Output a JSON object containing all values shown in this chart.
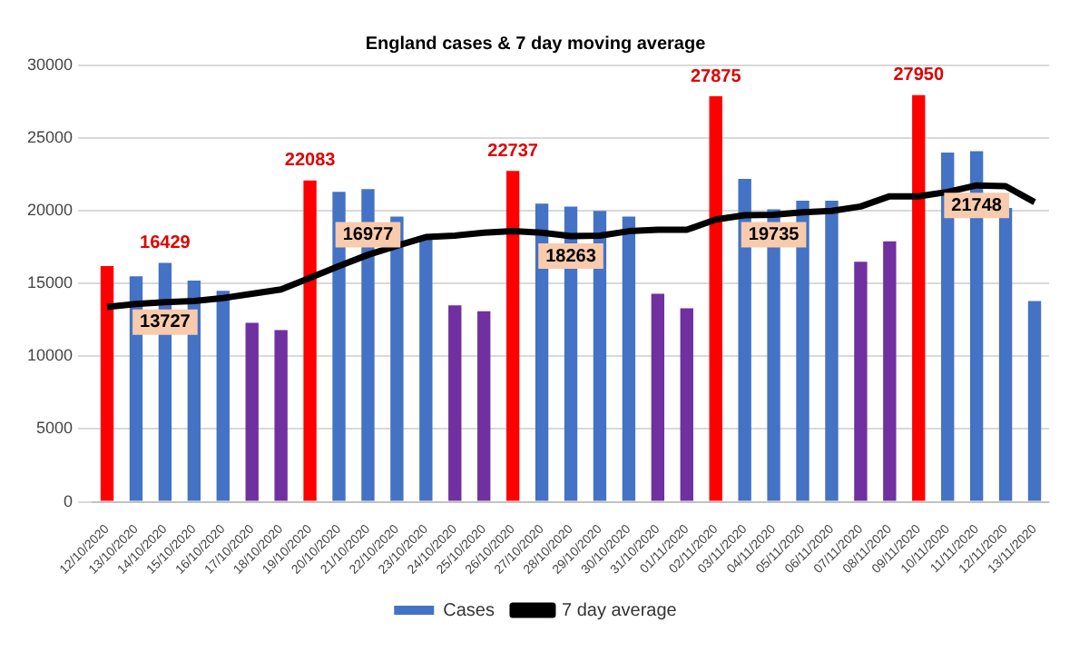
{
  "chart_data": {
    "type": "bar",
    "title": "England cases & 7 day moving average",
    "categories": [
      "12/10/2020",
      "13/10/2020",
      "14/10/2020",
      "15/10/2020",
      "16/10/2020",
      "17/10/2020",
      "18/10/2020",
      "19/10/2020",
      "20/10/2020",
      "21/10/2020",
      "22/10/2020",
      "23/10/2020",
      "24/10/2020",
      "25/10/2020",
      "26/10/2020",
      "27/10/2020",
      "28/10/2020",
      "29/10/2020",
      "30/10/2020",
      "31/10/2020",
      "01/11/2020",
      "02/11/2020",
      "03/11/2020",
      "04/11/2020",
      "05/11/2020",
      "06/11/2020",
      "07/11/2020",
      "08/11/2020",
      "09/11/2020",
      "10/11/2020",
      "11/11/2020",
      "12/11/2020",
      "13/11/2020"
    ],
    "series": [
      {
        "name": "Cases",
        "color": "#4472c4",
        "colors": [
          "#ff0000",
          "#4472c4",
          "#4472c4",
          "#4472c4",
          "#4472c4",
          "#7030a0",
          "#7030a0",
          "#ff0000",
          "#4472c4",
          "#4472c4",
          "#4472c4",
          "#4472c4",
          "#7030a0",
          "#7030a0",
          "#ff0000",
          "#4472c4",
          "#4472c4",
          "#4472c4",
          "#4472c4",
          "#7030a0",
          "#7030a0",
          "#ff0000",
          "#4472c4",
          "#4472c4",
          "#4472c4",
          "#4472c4",
          "#7030a0",
          "#7030a0",
          "#ff0000",
          "#4472c4",
          "#4472c4",
          "#4472c4",
          "#4472c4"
        ],
        "values": [
          16200,
          15500,
          16429,
          15200,
          14500,
          12300,
          11800,
          22083,
          21300,
          21500,
          19600,
          18100,
          13500,
          13100,
          22737,
          20500,
          20300,
          20000,
          19600,
          14300,
          13300,
          27875,
          22200,
          20100,
          20700,
          20700,
          16500,
          17900,
          27950,
          24000,
          24100,
          20200,
          13800
        ],
        "value_labels": [
          null,
          null,
          "16429",
          null,
          null,
          null,
          null,
          "22083",
          null,
          null,
          null,
          null,
          null,
          null,
          "22737",
          null,
          null,
          null,
          null,
          null,
          null,
          "27875",
          null,
          null,
          null,
          null,
          null,
          null,
          "27950",
          null,
          null,
          null,
          null
        ]
      },
      {
        "name": "7 day average",
        "type": "line",
        "color": "#000000",
        "marker": "none",
        "values": [
          13400,
          13600,
          13727,
          13800,
          14000,
          14300,
          14600,
          15400,
          16200,
          16977,
          17600,
          18200,
          18300,
          18500,
          18600,
          18500,
          18263,
          18300,
          18600,
          18700,
          18700,
          19400,
          19700,
          19735,
          19900,
          20000,
          20300,
          21000,
          21000,
          21300,
          21748,
          21700,
          20600
        ],
        "value_labels": [
          null,
          null,
          "13727",
          null,
          null,
          null,
          null,
          null,
          null,
          "16977",
          null,
          null,
          null,
          null,
          null,
          null,
          "18263",
          null,
          null,
          null,
          null,
          null,
          null,
          "19735",
          null,
          null,
          null,
          null,
          null,
          null,
          "21748",
          null,
          null
        ]
      }
    ],
    "ylim": [
      0,
      30000
    ],
    "yticks": [
      0,
      5000,
      10000,
      15000,
      20000,
      25000,
      30000
    ],
    "grid": "y",
    "legend": "bottom"
  }
}
